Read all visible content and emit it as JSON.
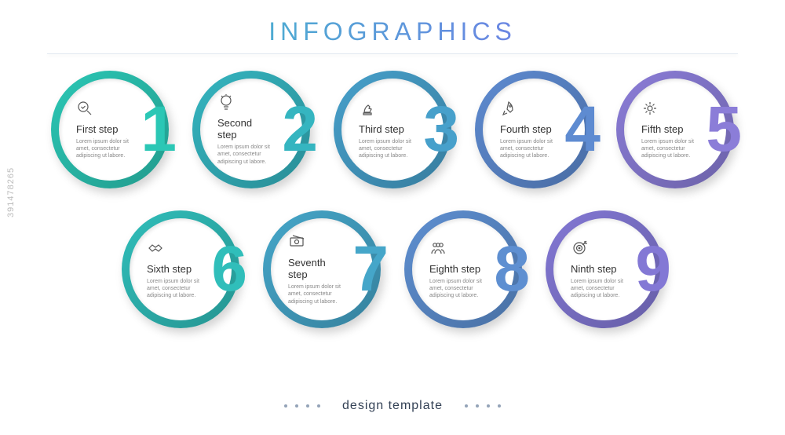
{
  "title": "INFOGRAPHICS",
  "footer_label": "design template",
  "watermark": "391478265",
  "body_text": "Lorem ipsum dolor sit amet, consectetur adipiscing ut labore.",
  "colors": {
    "gradient_start": "#2dd4bf",
    "gradient_end": "#8b5cf6",
    "background": "#ffffff"
  },
  "layout": {
    "type": "infographic",
    "rows": [
      5,
      4
    ],
    "circle_diameter": 150,
    "ring_width": 10,
    "gap": 30
  },
  "steps": [
    {
      "n": "1",
      "title": "First step",
      "icon": "magnify-check",
      "color": "#2bc7b5"
    },
    {
      "n": "2",
      "title": "Second step",
      "icon": "lightbulb",
      "color": "#35b5c0"
    },
    {
      "n": "3",
      "title": "Third step",
      "icon": "knight",
      "color": "#47a0cb"
    },
    {
      "n": "4",
      "title": "Fourth step",
      "icon": "rocket",
      "color": "#5e8bd1"
    },
    {
      "n": "5",
      "title": "Fifth step",
      "icon": "gear",
      "color": "#8b7dd8"
    },
    {
      "n": "6",
      "title": "Sixth step",
      "icon": "handshake",
      "color": "#30beba"
    },
    {
      "n": "7",
      "title": "Seventh step",
      "icon": "money",
      "color": "#45a6c9"
    },
    {
      "n": "8",
      "title": "Eighth step",
      "icon": "people",
      "color": "#5e8fd1"
    },
    {
      "n": "9",
      "title": "Ninth step",
      "icon": "target",
      "color": "#8378d5"
    }
  ]
}
